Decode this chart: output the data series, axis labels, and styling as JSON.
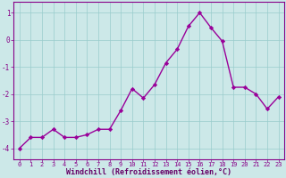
{
  "x": [
    0,
    1,
    2,
    3,
    4,
    5,
    6,
    7,
    8,
    9,
    10,
    11,
    12,
    13,
    14,
    15,
    16,
    17,
    18,
    19,
    20,
    21,
    22,
    23
  ],
  "y": [
    -4.0,
    -3.6,
    -3.6,
    -3.3,
    -3.6,
    -3.6,
    -3.5,
    -3.3,
    -3.3,
    -2.6,
    -1.8,
    -2.15,
    -1.65,
    -0.85,
    -0.35,
    0.5,
    1.0,
    0.45,
    -0.05,
    -1.75,
    -1.75,
    -2.0,
    -2.55,
    -2.1
  ],
  "line_color": "#990099",
  "marker": "D",
  "marker_size": 2.2,
  "bg_color": "#cce8e8",
  "grid_color": "#99cccc",
  "xlabel": "Windchill (Refroidissement éolien,°C)",
  "xlabel_color": "#660066",
  "tick_color": "#880088",
  "ylim": [
    -4.4,
    1.4
  ],
  "yticks": [
    -4,
    -3,
    -2,
    -1,
    0,
    1
  ],
  "xlim": [
    -0.5,
    23.5
  ],
  "xticks": [
    0,
    1,
    2,
    3,
    4,
    5,
    6,
    7,
    8,
    9,
    10,
    11,
    12,
    13,
    14,
    15,
    16,
    17,
    18,
    19,
    20,
    21,
    22,
    23
  ],
  "spine_color": "#880088",
  "line_width": 1.0,
  "xtick_fontsize": 5.0,
  "ytick_fontsize": 5.5,
  "xlabel_fontsize": 6.0
}
